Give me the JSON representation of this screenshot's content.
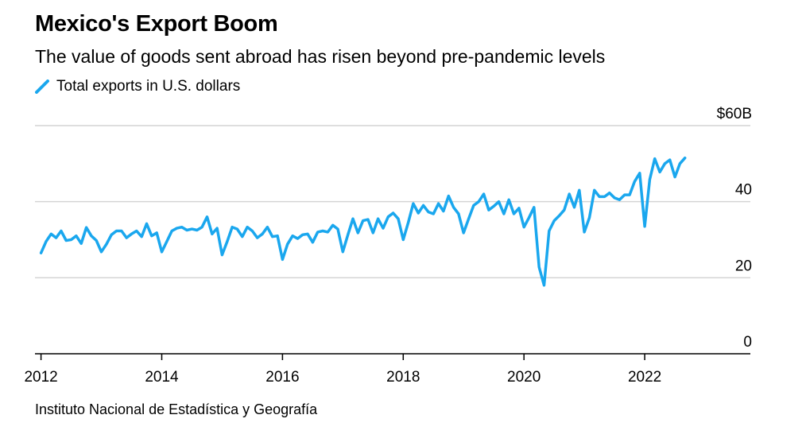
{
  "chart_data": {
    "type": "line",
    "title": "Mexico's Export Boom",
    "subtitle": "The value of goods sent abroad has risen beyond pre-pandemic levels",
    "source": "Instituto Nacional de Estadística y Geografía",
    "xlabel": "",
    "ylabel": "",
    "x_ticks": [
      "2012",
      "2014",
      "2016",
      "2018",
      "2020",
      "2022"
    ],
    "y_tick_values": [
      0,
      20,
      40,
      60
    ],
    "y_tick_labels": [
      "0",
      "20",
      "40",
      "$60B"
    ],
    "ylim": [
      0,
      60
    ],
    "xlim": [
      2011.9,
      2023.75
    ],
    "grid": true,
    "legend_position": "top-left",
    "series": [
      {
        "name": "Total exports in U.S. dollars",
        "color": "#1aa7ee",
        "x_start": 2012.0,
        "step": 0.0833333,
        "values": [
          26.5,
          29.5,
          31.5,
          30.5,
          32.3,
          29.8,
          30.0,
          31.0,
          29.0,
          33.2,
          31.0,
          29.8,
          26.8,
          28.8,
          31.3,
          32.3,
          32.3,
          30.5,
          31.5,
          32.3,
          30.8,
          34.2,
          31.0,
          31.8,
          26.8,
          29.5,
          32.3,
          33.0,
          33.3,
          32.5,
          32.8,
          32.5,
          33.3,
          36.0,
          31.5,
          33.0,
          26.0,
          29.5,
          33.3,
          32.8,
          30.8,
          33.3,
          32.3,
          30.5,
          31.5,
          33.3,
          30.8,
          31.0,
          24.8,
          28.8,
          31.0,
          30.3,
          31.3,
          31.5,
          29.3,
          32.0,
          32.3,
          32.0,
          33.8,
          32.8,
          26.8,
          31.3,
          35.5,
          31.8,
          35.0,
          35.3,
          31.8,
          35.5,
          33.0,
          36.0,
          37.0,
          35.5,
          30.0,
          34.5,
          39.5,
          37.0,
          39.0,
          37.3,
          36.8,
          39.5,
          37.5,
          41.5,
          38.5,
          36.8,
          31.8,
          35.5,
          39.0,
          40.0,
          42.0,
          37.8,
          38.8,
          40.0,
          36.8,
          40.5,
          36.8,
          38.3,
          33.3,
          35.8,
          38.5,
          22.8,
          18.0,
          32.3,
          35.0,
          36.3,
          37.8,
          42.0,
          38.5,
          43.0,
          32.0,
          35.8,
          43.0,
          41.3,
          41.3,
          42.3,
          41.0,
          40.5,
          41.8,
          41.8,
          45.3,
          47.5,
          33.5,
          45.8,
          51.3,
          47.8,
          50.0,
          51.0,
          46.5,
          50.0,
          51.5
        ]
      }
    ]
  },
  "legend": {
    "icon": "slash-line-icon",
    "label": "Total exports in U.S. dollars",
    "color": "#1aa7ee"
  },
  "colors": {
    "gridline": "#d4d4d4",
    "axis": "#000000",
    "text": "#000000",
    "background": "#ffffff"
  }
}
